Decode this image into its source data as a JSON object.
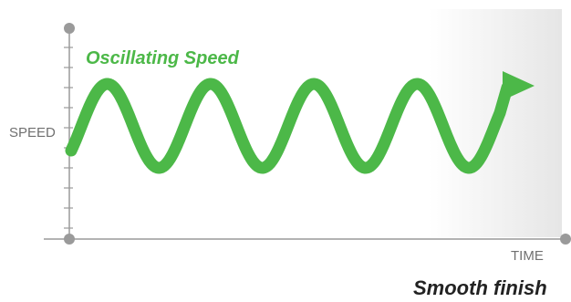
{
  "series_label": "Oscillating Speed",
  "y_axis_label": "SPEED",
  "x_axis_label": "TIME",
  "caption": "Smooth finish",
  "colors": {
    "wave": "#4cb848",
    "axis": "#9a9a9a",
    "caption": "#222222",
    "fade_start": "#ffffff",
    "fade_end": "#e6e6e6"
  },
  "wave": {
    "shape": "sine",
    "cycles": 4,
    "direction": "increasing time",
    "ends_with": "arrow-head"
  }
}
